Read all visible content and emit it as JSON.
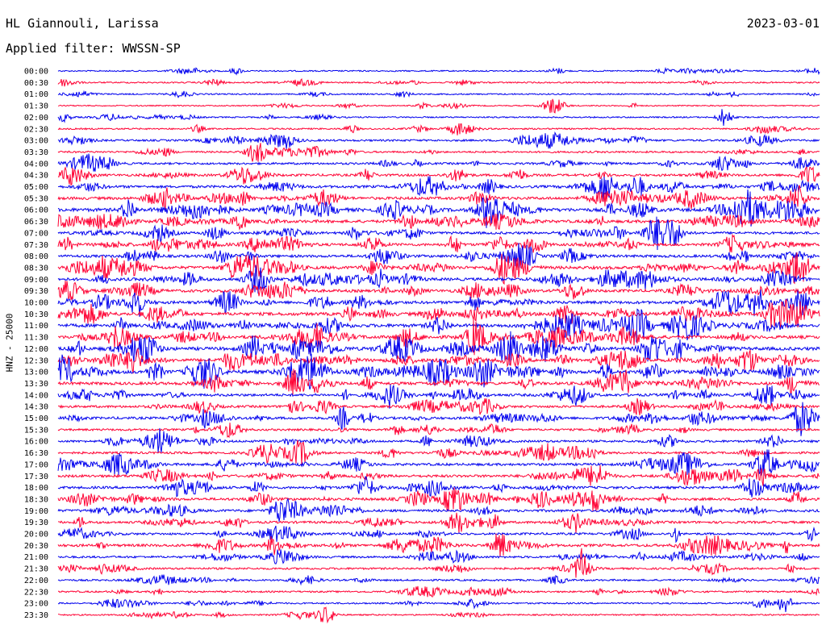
{
  "header": {
    "station": "HL Giannouli, Larissa",
    "date": "2023-03-01",
    "filter": "Applied filter: WWSSN-SP"
  },
  "chart_data": {
    "type": "line",
    "title": "HL Giannouli, Larissa",
    "subtitle": "Applied filter: WWSSN-SP",
    "ylabel": "HNZ - 25000",
    "series_colors": [
      "#0000ee",
      "#ff0033"
    ],
    "grid": false,
    "rows": [
      {
        "label": "00:00",
        "activity": 0.12
      },
      {
        "label": "00:30",
        "activity": 0.15
      },
      {
        "label": "01:00",
        "activity": 0.14
      },
      {
        "label": "01:30",
        "activity": 0.05
      },
      {
        "label": "02:00",
        "activity": 0.15
      },
      {
        "label": "02:30",
        "activity": 0.2
      },
      {
        "label": "03:00",
        "activity": 0.35
      },
      {
        "label": "03:30",
        "activity": 0.3
      },
      {
        "label": "04:00",
        "activity": 0.4
      },
      {
        "label": "04:30",
        "activity": 0.5
      },
      {
        "label": "05:00",
        "activity": 0.6
      },
      {
        "label": "05:30",
        "activity": 0.65
      },
      {
        "label": "06:00",
        "activity": 0.9
      },
      {
        "label": "06:30",
        "activity": 0.7
      },
      {
        "label": "07:00",
        "activity": 0.55
      },
      {
        "label": "07:30",
        "activity": 0.6
      },
      {
        "label": "08:00",
        "activity": 0.6
      },
      {
        "label": "08:30",
        "activity": 0.75
      },
      {
        "label": "09:00",
        "activity": 0.7
      },
      {
        "label": "09:30",
        "activity": 0.65
      },
      {
        "label": "10:00",
        "activity": 0.7
      },
      {
        "label": "10:30",
        "activity": 0.8
      },
      {
        "label": "11:00",
        "activity": 0.85
      },
      {
        "label": "11:30",
        "activity": 0.8
      },
      {
        "label": "12:00",
        "activity": 0.85
      },
      {
        "label": "12:30",
        "activity": 0.8
      },
      {
        "label": "13:00",
        "activity": 0.9
      },
      {
        "label": "13:30",
        "activity": 0.7
      },
      {
        "label": "14:00",
        "activity": 0.6
      },
      {
        "label": "14:30",
        "activity": 0.5
      },
      {
        "label": "15:00",
        "activity": 0.55
      },
      {
        "label": "15:30",
        "activity": 0.4
      },
      {
        "label": "16:00",
        "activity": 0.45
      },
      {
        "label": "16:30",
        "activity": 0.45
      },
      {
        "label": "17:00",
        "activity": 0.55
      },
      {
        "label": "17:30",
        "activity": 0.6
      },
      {
        "label": "18:00",
        "activity": 0.55
      },
      {
        "label": "18:30",
        "activity": 0.6
      },
      {
        "label": "19:00",
        "activity": 0.55
      },
      {
        "label": "19:30",
        "activity": 0.5
      },
      {
        "label": "20:00",
        "activity": 0.45
      },
      {
        "label": "20:30",
        "activity": 0.6
      },
      {
        "label": "21:00",
        "activity": 0.4
      },
      {
        "label": "21:30",
        "activity": 0.35
      },
      {
        "label": "22:00",
        "activity": 0.3
      },
      {
        "label": "22:30",
        "activity": 0.25
      },
      {
        "label": "23:00",
        "activity": 0.2
      },
      {
        "label": "23:30",
        "activity": 0.15
      }
    ]
  }
}
